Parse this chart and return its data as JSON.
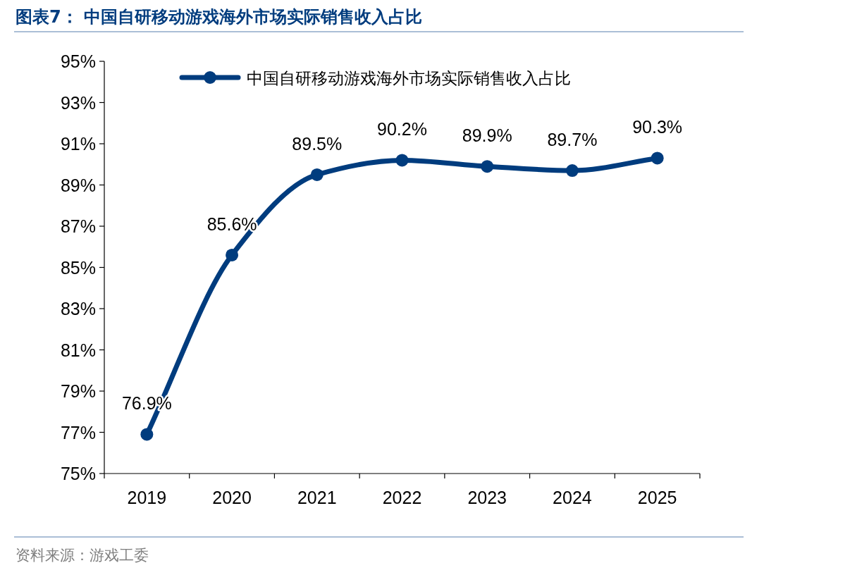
{
  "chart_data": {
    "type": "line",
    "title": "图表7：  中国自研移动游戏海外市场实际销售收入占比",
    "categories": [
      "2019",
      "2020",
      "2021",
      "2022",
      "2023",
      "2024",
      "2025"
    ],
    "series": [
      {
        "name": "中国自研移动游戏海外市场实际销售收入占比",
        "color": "#003c7e",
        "values": [
          76.9,
          85.6,
          89.5,
          90.2,
          89.9,
          89.7,
          90.3
        ],
        "value_labels": [
          "76.9%",
          "85.6%",
          "89.5%",
          "90.2%",
          "89.9%",
          "89.7%",
          "90.3%"
        ]
      }
    ],
    "ylim": [
      75,
      95
    ],
    "yticks": [
      {
        "value": 75,
        "label": "75%"
      },
      {
        "value": 77,
        "label": "77%"
      },
      {
        "value": 79,
        "label": "79%"
      },
      {
        "value": 81,
        "label": "81%"
      },
      {
        "value": 83,
        "label": "83%"
      },
      {
        "value": 85,
        "label": "85%"
      },
      {
        "value": 87,
        "label": "87%"
      },
      {
        "value": 89,
        "label": "89%"
      },
      {
        "value": 91,
        "label": "91%"
      },
      {
        "value": 93,
        "label": "93%"
      },
      {
        "value": 95,
        "label": "95%"
      }
    ],
    "legend": "top",
    "marker": "circle",
    "line_style": "solid",
    "grid": false,
    "annotations": [
      "资料来源：游戏工委"
    ]
  }
}
